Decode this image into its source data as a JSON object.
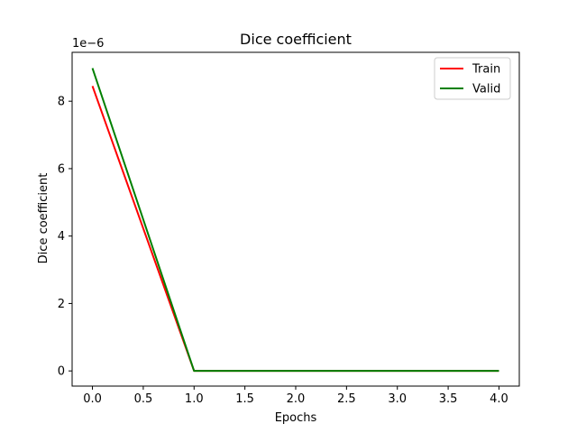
{
  "chart_data": {
    "type": "line",
    "title": "Dice coefficient",
    "xlabel": "Epochs",
    "ylabel": "Dice coefficient",
    "y_offset_text": "1e−6",
    "xlim": [
      -0.2,
      4.2
    ],
    "ylim": [
      -0.45,
      9.45
    ],
    "xticks": [
      0.0,
      0.5,
      1.0,
      1.5,
      2.0,
      2.5,
      3.0,
      3.5,
      4.0
    ],
    "xtick_labels": [
      "0.0",
      "0.5",
      "1.0",
      "1.5",
      "2.0",
      "2.5",
      "3.0",
      "3.5",
      "4.0"
    ],
    "yticks": [
      0,
      2,
      4,
      6,
      8
    ],
    "ytick_labels": [
      "0",
      "2",
      "4",
      "6",
      "8"
    ],
    "grid": false,
    "legend_position": "top-right",
    "x": [
      0,
      1,
      2,
      3,
      4
    ],
    "series": [
      {
        "name": "Train",
        "color": "#ff0000",
        "values": [
          8.45,
          0,
          0,
          0,
          0
        ]
      },
      {
        "name": "Valid",
        "color": "#008000",
        "values": [
          8.98,
          0,
          0,
          0,
          0
        ]
      }
    ]
  }
}
